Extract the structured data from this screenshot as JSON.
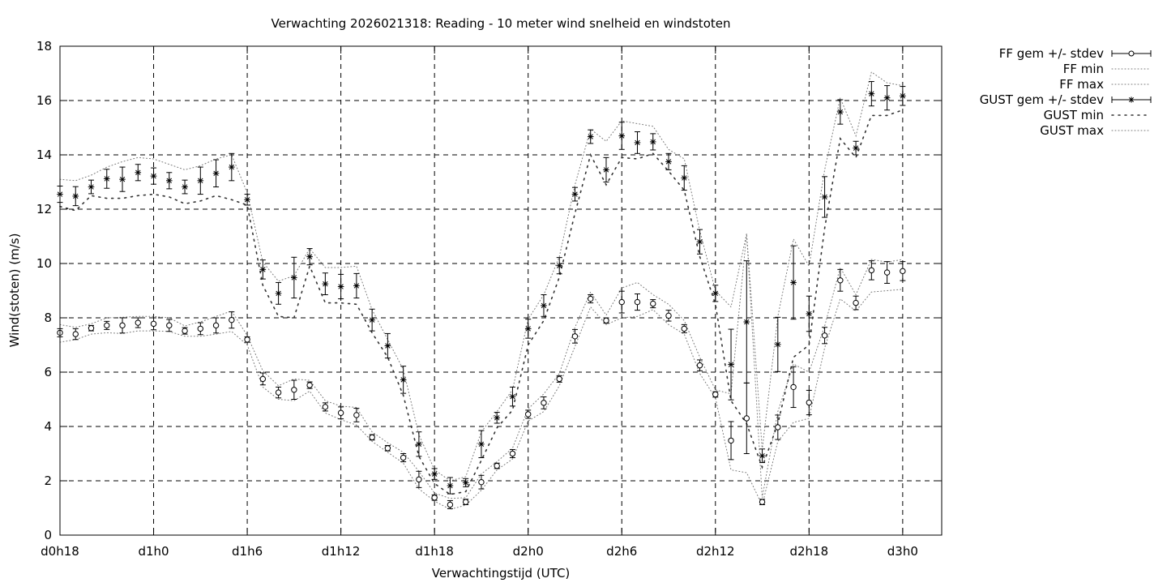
{
  "chart_data": {
    "type": "line",
    "title": "Verwachting 2026021318: Reading - 10 meter wind snelheid en windstoten",
    "xlabel": "Verwachtingstijd (UTC)",
    "ylabel": "Wind(stoten) (m/s)",
    "xlim": [
      18,
      74.5
    ],
    "ylim": [
      0,
      18
    ],
    "yticks": [
      0,
      2,
      4,
      6,
      8,
      10,
      12,
      14,
      16,
      18
    ],
    "xticks": [
      {
        "x": 18,
        "label": "d0h18"
      },
      {
        "x": 24,
        "label": "d1h0"
      },
      {
        "x": 30,
        "label": "d1h6"
      },
      {
        "x": 36,
        "label": "d1h12"
      },
      {
        "x": 42,
        "label": "d1h18"
      },
      {
        "x": 48,
        "label": "d2h0"
      },
      {
        "x": 54,
        "label": "d2h6"
      },
      {
        "x": 60,
        "label": "d2h12"
      },
      {
        "x": 66,
        "label": "d2h18"
      },
      {
        "x": 72,
        "label": "d3h0"
      }
    ],
    "grid": true,
    "legend_position": "outside-right",
    "x_hours": [
      18,
      19,
      20,
      21,
      22,
      23,
      24,
      25,
      26,
      27,
      28,
      29,
      30,
      31,
      32,
      33,
      34,
      35,
      36,
      37,
      38,
      39,
      40,
      41,
      42,
      43,
      44,
      45,
      46,
      47,
      48,
      49,
      50,
      51,
      52,
      53,
      54,
      55,
      56,
      57,
      58,
      59,
      60,
      61,
      62,
      63,
      64,
      65,
      66,
      67,
      68,
      69,
      70,
      71,
      72
    ],
    "series": [
      {
        "name": "FF gem +/- stdev",
        "marker": "circle",
        "values": [
          7.45,
          7.4,
          7.62,
          7.72,
          7.72,
          7.82,
          7.78,
          7.72,
          7.52,
          7.6,
          7.72,
          7.92,
          7.2,
          5.75,
          5.25,
          5.35,
          5.52,
          4.72,
          4.5,
          4.42,
          3.6,
          3.2,
          2.85,
          2.05,
          1.38,
          1.12,
          1.22,
          1.95,
          2.55,
          3.0,
          4.45,
          4.87,
          5.75,
          7.32,
          8.7,
          7.9,
          8.58,
          8.58,
          8.52,
          8.08,
          7.6,
          6.25,
          5.18,
          3.48,
          4.3,
          1.22,
          3.97,
          5.45,
          4.88,
          7.35,
          9.38,
          8.55,
          9.75,
          9.67,
          9.72
        ],
        "stdev": [
          0.15,
          0.2,
          0.1,
          0.15,
          0.28,
          0.18,
          0.22,
          0.22,
          0.12,
          0.22,
          0.28,
          0.3,
          0.1,
          0.22,
          0.2,
          0.35,
          0.12,
          0.15,
          0.22,
          0.25,
          0.1,
          0.1,
          0.15,
          0.3,
          0.1,
          0.15,
          0.1,
          0.25,
          0.1,
          0.15,
          0.15,
          0.22,
          0.12,
          0.25,
          0.15,
          0.1,
          0.4,
          0.3,
          0.15,
          0.2,
          0.15,
          0.2,
          0.1,
          0.7,
          1.3,
          0.1,
          0.45,
          0.75,
          0.45,
          0.3,
          0.4,
          0.25,
          0.35,
          0.4,
          0.35
        ]
      },
      {
        "name": "FF min",
        "values": [
          7.1,
          7.2,
          7.4,
          7.45,
          7.42,
          7.52,
          7.52,
          7.5,
          7.32,
          7.32,
          7.4,
          7.5,
          7.0,
          5.45,
          5.0,
          4.95,
          5.3,
          4.5,
          4.25,
          4.05,
          3.45,
          3.05,
          2.65,
          1.7,
          1.25,
          0.95,
          1.1,
          1.65,
          2.4,
          2.8,
          4.2,
          4.55,
          5.5,
          6.95,
          8.4,
          7.75,
          8.0,
          8.05,
          8.3,
          7.75,
          7.4,
          5.95,
          5.05,
          2.4,
          2.3,
          1.1,
          3.45,
          4.15,
          4.3,
          6.9,
          8.7,
          8.25,
          8.95,
          9.0,
          9.05
        ]
      },
      {
        "name": "FF max",
        "values": [
          7.75,
          7.65,
          7.78,
          8.0,
          8.02,
          8.05,
          8.05,
          8.0,
          7.7,
          7.85,
          8.05,
          8.25,
          7.35,
          6.05,
          5.5,
          5.75,
          5.7,
          4.95,
          4.75,
          4.7,
          3.8,
          3.4,
          3.05,
          2.35,
          1.55,
          1.35,
          1.38,
          2.25,
          2.7,
          3.2,
          4.65,
          5.2,
          5.95,
          7.65,
          8.95,
          8.1,
          9.1,
          9.3,
          8.85,
          8.5,
          7.9,
          6.55,
          5.35,
          5.2,
          11.1,
          1.38,
          4.55,
          6.3,
          6.0,
          7.7,
          9.85,
          8.85,
          10.15,
          10.05,
          10.15
        ]
      },
      {
        "name": "GUST gem +/- stdev",
        "marker": "asterisk",
        "values": [
          12.55,
          12.48,
          12.82,
          13.12,
          13.1,
          13.35,
          13.22,
          13.05,
          12.82,
          13.05,
          13.32,
          13.55,
          12.35,
          9.78,
          8.9,
          9.48,
          10.25,
          9.25,
          9.15,
          9.18,
          7.92,
          6.97,
          5.72,
          3.35,
          2.25,
          1.82,
          1.93,
          3.35,
          4.32,
          5.1,
          7.6,
          8.45,
          9.92,
          12.55,
          14.67,
          13.45,
          14.7,
          14.45,
          14.48,
          13.75,
          13.15,
          10.8,
          8.9,
          6.28,
          7.85,
          2.92,
          7.02,
          9.3,
          8.15,
          12.45,
          15.58,
          14.25,
          16.25,
          16.1,
          16.17
        ],
        "stdev": [
          0.3,
          0.35,
          0.25,
          0.35,
          0.45,
          0.3,
          0.3,
          0.3,
          0.25,
          0.5,
          0.5,
          0.5,
          0.2,
          0.35,
          0.4,
          0.75,
          0.3,
          0.4,
          0.45,
          0.45,
          0.4,
          0.45,
          0.5,
          0.45,
          0.2,
          0.3,
          0.15,
          0.5,
          0.2,
          0.35,
          0.35,
          0.4,
          0.3,
          0.25,
          0.25,
          0.45,
          0.5,
          0.4,
          0.3,
          0.3,
          0.45,
          0.45,
          0.3,
          1.3,
          2.25,
          0.25,
          1.0,
          1.35,
          0.65,
          0.75,
          0.45,
          0.25,
          0.45,
          0.45,
          0.35
        ]
      },
      {
        "name": "GUST min",
        "values": [
          12.1,
          11.95,
          12.5,
          12.4,
          12.4,
          12.5,
          12.55,
          12.45,
          12.2,
          12.3,
          12.5,
          12.35,
          12.15,
          9.2,
          8.05,
          8.0,
          9.9,
          8.55,
          8.55,
          8.5,
          7.45,
          6.55,
          5.15,
          2.9,
          1.9,
          1.5,
          1.6,
          2.75,
          3.95,
          4.6,
          7.0,
          7.9,
          9.5,
          11.85,
          14.0,
          12.9,
          13.9,
          13.85,
          14.05,
          13.4,
          12.7,
          10.25,
          8.5,
          4.95,
          4.1,
          2.5,
          4.1,
          6.55,
          7.0,
          11.3,
          14.6,
          13.9,
          15.45,
          15.45,
          15.65
        ]
      },
      {
        "name": "GUST max",
        "values": [
          13.1,
          13.05,
          13.25,
          13.55,
          13.75,
          13.9,
          13.85,
          13.65,
          13.45,
          13.6,
          13.85,
          14.0,
          12.6,
          10.05,
          9.35,
          9.55,
          10.55,
          9.85,
          9.85,
          9.9,
          8.3,
          7.2,
          6.1,
          3.7,
          2.4,
          2.0,
          2.15,
          3.8,
          4.55,
          5.35,
          7.95,
          8.85,
          10.25,
          12.9,
          14.95,
          14.5,
          15.25,
          15.15,
          15.05,
          14.2,
          13.85,
          11.2,
          9.0,
          8.4,
          11.1,
          3.15,
          8.05,
          10.9,
          9.9,
          13.45,
          16.1,
          14.7,
          17.05,
          16.65,
          16.55
        ]
      }
    ]
  }
}
